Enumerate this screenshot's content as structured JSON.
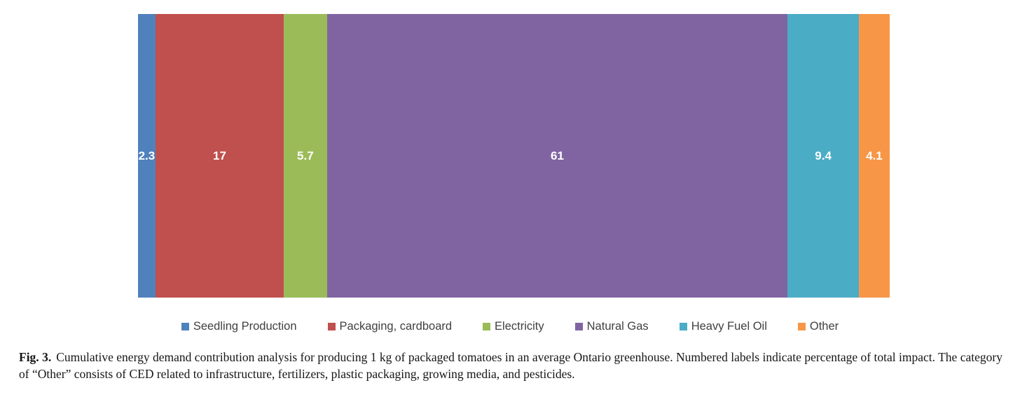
{
  "chart_data": {
    "type": "bar",
    "variant": "horizontal-stacked",
    "title": "",
    "categories": [
      "Seedling Production",
      "Packaging, cardboard",
      "Electricity",
      "Natural Gas",
      "Heavy Fuel Oil",
      "Other"
    ],
    "values": [
      2.3,
      17,
      5.7,
      61,
      9.4,
      4.1
    ],
    "value_labels": [
      "2.3",
      "17",
      "5.7",
      "61",
      "9.4",
      "4.1"
    ],
    "colors": [
      "#4F81BD",
      "#C0504D",
      "#9BBB59",
      "#8064A2",
      "#4BACC6",
      "#F79646"
    ],
    "value_unit": "percentage of total impact",
    "label_color": "#ffffff",
    "legend_position": "bottom",
    "grid": false,
    "axes_visible": false
  },
  "caption": {
    "fig_label": "Fig. 3.",
    "text": "Cumulative energy demand contribution analysis for producing 1 kg of packaged tomatoes in an average Ontario greenhouse. Numbered labels indicate percentage of total impact. The category of “Other” consists of CED related to infrastructure, fertilizers, plastic packaging, growing media, and pesticides."
  }
}
